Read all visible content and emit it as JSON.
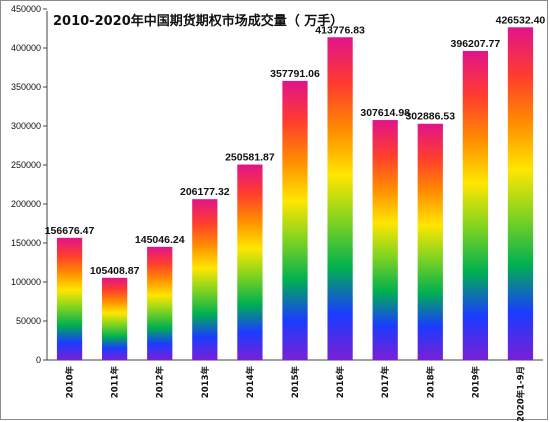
{
  "chart_data": {
    "type": "bar",
    "title": "2010-2020年中国期货期权市场成交量（ 万手）",
    "xlabel": "",
    "ylabel": "",
    "categories": [
      "2010年",
      "2011年",
      "2012年",
      "2013年",
      "2014年",
      "2015年",
      "2016年",
      "2017年",
      "2018年",
      "2019年",
      "2020年1-9月"
    ],
    "values": [
      156676.47,
      105408.87,
      145046.24,
      206177.32,
      250581.87,
      357791.06,
      413776.83,
      307614.98,
      302886.53,
      396207.77,
      426532.4
    ],
    "data_labels": [
      "156676.47",
      "105408.87",
      "145046.24",
      "206177.32",
      "250581.87",
      "357791.06",
      "413776.83",
      "307614.98",
      "302886.53",
      "396207.77",
      "426532.40"
    ],
    "ylim": [
      0,
      450000
    ],
    "yticks": [
      0,
      50000,
      100000,
      150000,
      200000,
      250000,
      300000,
      350000,
      400000,
      450000
    ],
    "ytick_labels": [
      "0",
      "50000",
      "100000",
      "150000",
      "200000",
      "250000",
      "300000",
      "350000",
      "400000",
      "450000"
    ],
    "grid": false,
    "legend": "none",
    "bar_fill": "rainbow-gradient",
    "gradient_colors": [
      "#e0148a",
      "#ff3b2f",
      "#ff8c00",
      "#ffe600",
      "#7ed321",
      "#00b050",
      "#1a3cff",
      "#7a1fd6"
    ]
  }
}
